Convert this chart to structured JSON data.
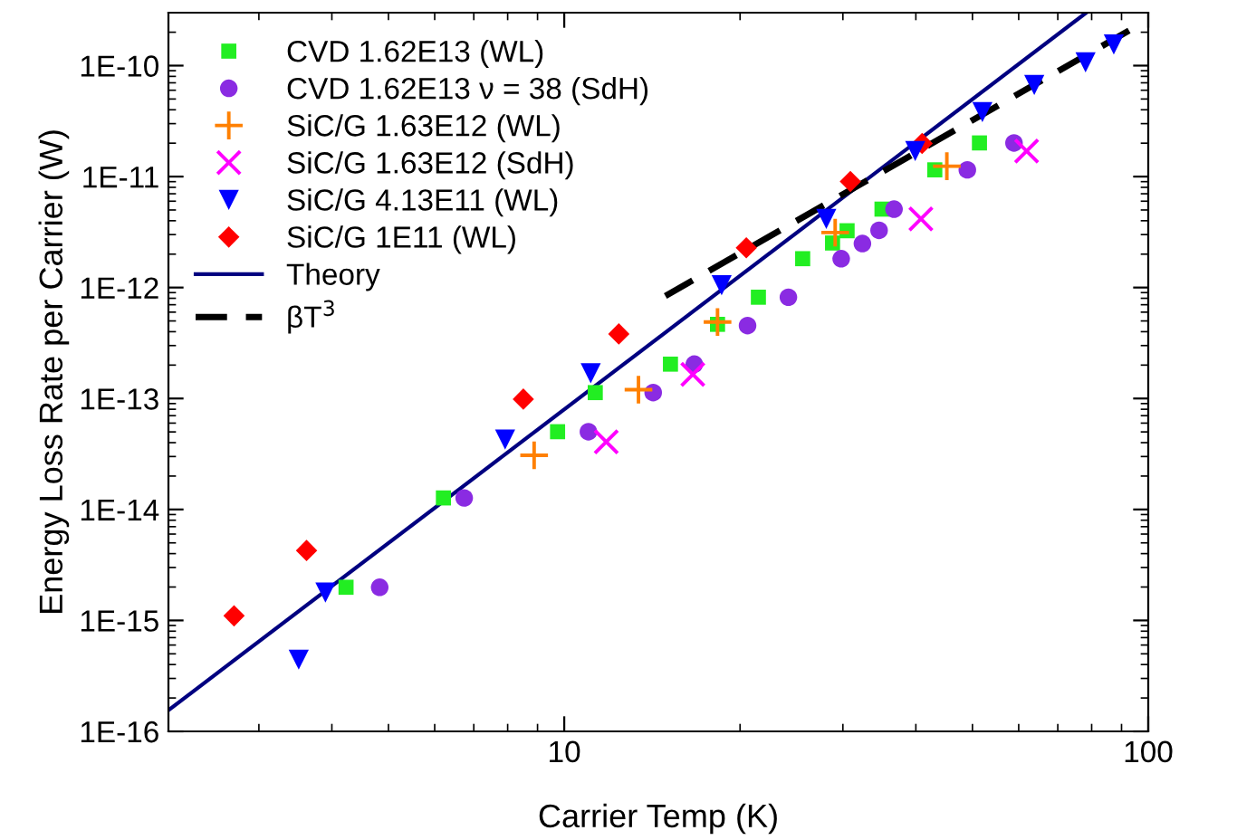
{
  "chart_data": {
    "type": "scatter",
    "xlabel": "Carrier Temp (K)",
    "ylabel": "Energy Loss Rate per Carrier (W)",
    "log": "xy",
    "grid": false,
    "legend": "top left",
    "xlim": [
      2.1,
      100
    ],
    "xticks": [
      10,
      100
    ],
    "ylim": [
      1e-16,
      3e-10
    ],
    "yticks": [
      {
        "value": 1e-16,
        "label": "1E-16"
      },
      {
        "value": 1e-15,
        "label": "1E-15"
      },
      {
        "value": 1e-14,
        "label": "1E-14"
      },
      {
        "value": 1e-13,
        "label": "1E-13"
      },
      {
        "value": 1e-12,
        "label": "1E-12"
      },
      {
        "value": 1e-11,
        "label": "1E-11"
      },
      {
        "value": 1e-10,
        "label": "1E-10"
      }
    ],
    "series": [
      {
        "name": "CVD 1.62E13 (WL)",
        "marker": "square",
        "color": "#22ee22",
        "x": [
          4.23,
          6.21,
          9.74,
          11.3,
          15.2,
          18.3,
          21.5,
          25.6,
          28.8,
          30.5,
          35.0,
          43.1,
          51.4
        ],
        "values": [
          1.99e-15,
          1.27e-14,
          5.02e-14,
          1.13e-13,
          2.04e-13,
          4.66e-13,
          8.18e-13,
          1.82e-12,
          2.52e-12,
          3.25e-12,
          5.09e-12,
          1.15e-11,
          2.01e-11
        ]
      },
      {
        "name": "CVD 1.62E13 ν = 38 (SdH)",
        "marker": "circle",
        "color": "#8a2be2",
        "x": [
          4.83,
          6.74,
          11.0,
          14.2,
          16.7,
          20.6,
          24.2,
          29.8,
          32.4,
          34.6,
          36.7,
          49.0,
          58.9
        ],
        "values": [
          1.99e-15,
          1.27e-14,
          5.02e-14,
          1.13e-13,
          2.04e-13,
          4.54e-13,
          8.18e-13,
          1.82e-12,
          2.49e-12,
          3.28e-12,
          5.09e-12,
          1.15e-11,
          2.01e-11
        ]
      },
      {
        "name": "SiC/G 1.63E12 (WL)",
        "marker": "plus",
        "color": "#ff8000",
        "x": [
          8.88,
          13.4,
          18.3,
          29.1,
          45.2
        ],
        "values": [
          3.08e-14,
          1.2e-13,
          4.89e-13,
          3.13e-12,
          1.24e-11
        ]
      },
      {
        "name": "SiC/G 1.63E12 (SdH)",
        "marker": "cross",
        "color": "#ff00ff",
        "x": [
          11.8,
          16.6,
          40.8,
          61.9
        ],
        "values": [
          4.06e-14,
          1.65e-13,
          4.16e-12,
          1.7e-11
        ]
      },
      {
        "name": "SiC/G 4.13E11 (WL)",
        "marker": "triangle_down",
        "color": "#0000ff",
        "x": [
          3.51,
          3.9,
          7.92,
          11.1,
          18.6,
          28.1,
          39.9,
          52.0,
          63.8,
          78.1,
          87.3
        ],
        "values": [
          4.43e-16,
          1.78e-15,
          4.27e-14,
          1.69e-13,
          1.05e-12,
          4.16e-12,
          1.7e-11,
          3.81e-11,
          6.7e-11,
          1.07e-10,
          1.55e-10
        ]
      },
      {
        "name": "SiC/G 1E11 (WL)",
        "marker": "diamond",
        "color": "#ff0000",
        "x": [
          2.72,
          3.62,
          8.51,
          12.4,
          20.5,
          30.9,
          41.0
        ],
        "values": [
          1.1e-15,
          4.27e-15,
          9.88e-14,
          3.82e-13,
          2.28e-12,
          9.04e-12,
          1.99e-11
        ]
      },
      {
        "name": "Theory",
        "type": "line",
        "line_style": "solid",
        "color": "#000080",
        "x": [
          2.1,
          78.3
        ],
        "values": [
          1.55e-16,
          3e-10
        ]
      },
      {
        "name": "βT$^{3}$",
        "type": "line",
        "line_style": "dashed",
        "color": "#000000",
        "x": [
          14.9,
          92.7
        ],
        "values": [
          8.4e-13,
          2.07e-10
        ]
      }
    ]
  }
}
